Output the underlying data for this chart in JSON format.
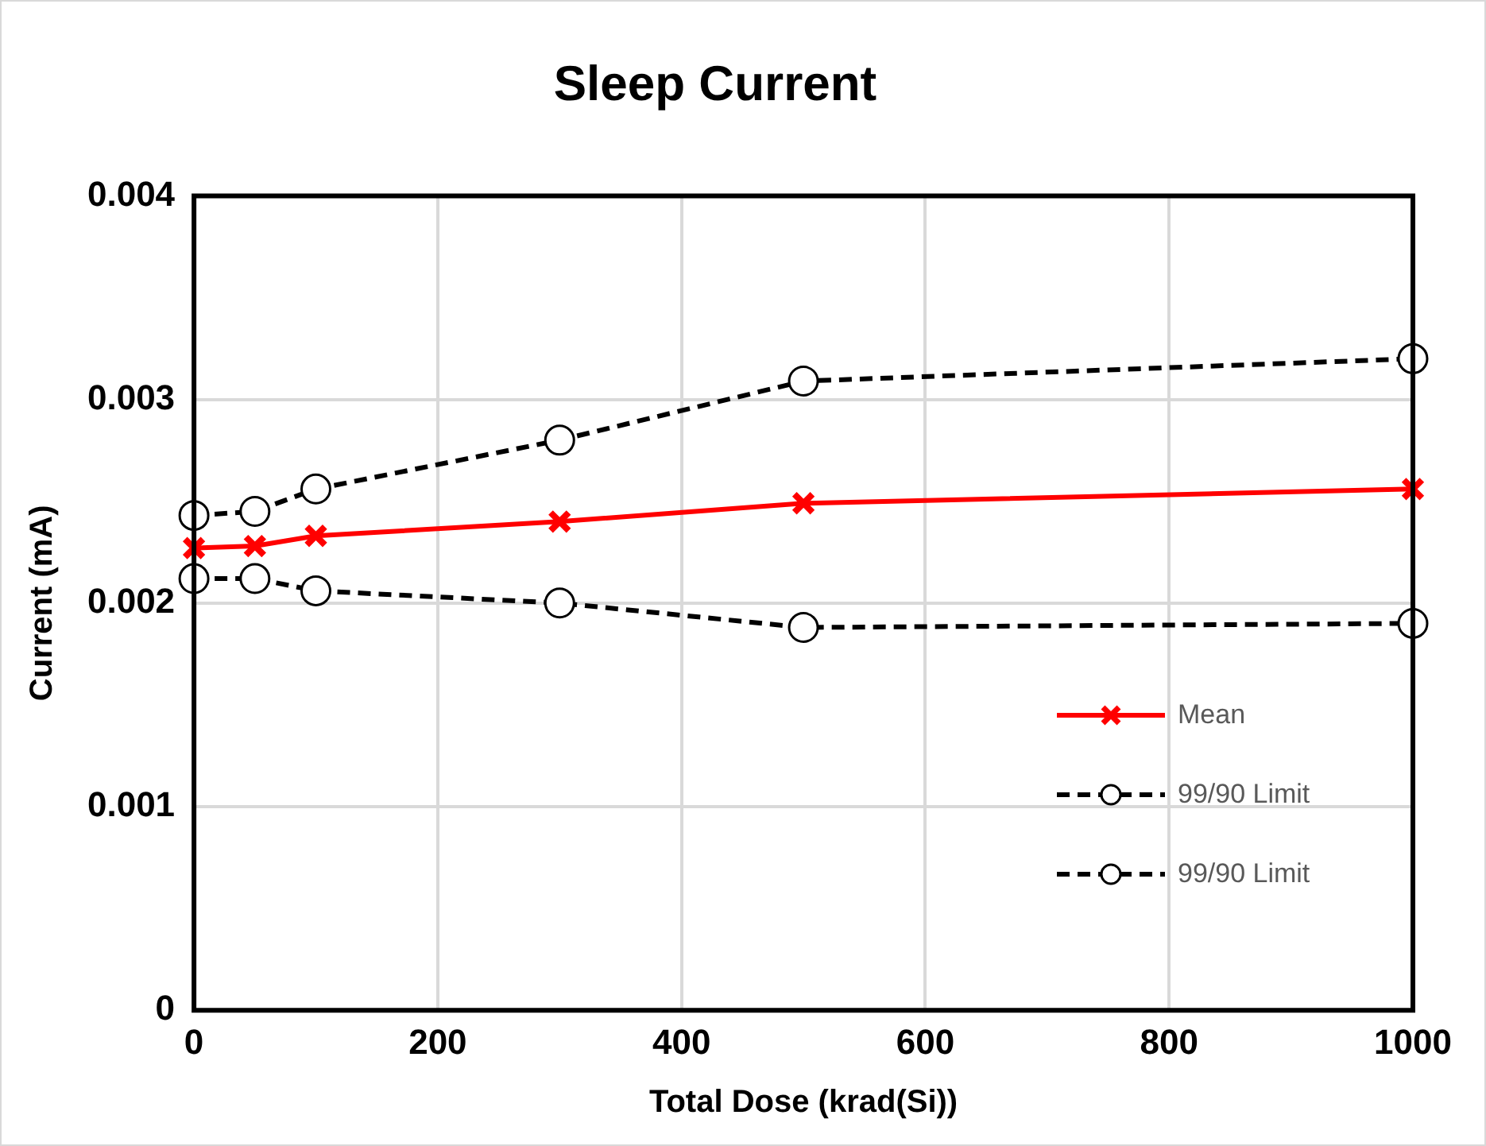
{
  "chart_data": {
    "type": "line",
    "title": "Sleep Current",
    "xlabel": "Total Dose (krad(Si))",
    "ylabel": "Current (mA)",
    "x": [
      0,
      50,
      100,
      300,
      500,
      1000
    ],
    "xlim": [
      0,
      1000
    ],
    "xticks": [
      0,
      200,
      400,
      600,
      800,
      1000
    ],
    "ylim": [
      0,
      0.004
    ],
    "yticks": [
      0,
      0.001,
      0.002,
      0.003,
      0.004
    ],
    "grid": true,
    "legend": "bottom right",
    "series": [
      {
        "name": "Mean",
        "color": "#ff0000",
        "marker": "cross",
        "line_style": "solid",
        "values": [
          0.00227,
          0.00228,
          0.00233,
          0.0024,
          0.00249,
          0.00256
        ]
      },
      {
        "name": "99/90 Limit",
        "color": "#000000",
        "marker": "circle",
        "line_style": "dashed",
        "values": [
          0.00243,
          0.00245,
          0.00256,
          0.0028,
          0.00309,
          0.0032
        ]
      },
      {
        "name": "99/90 Limit",
        "color": "#000000",
        "marker": "circle",
        "line_style": "dashed",
        "values": [
          0.00212,
          0.00212,
          0.00206,
          0.002,
          0.00188,
          0.0019
        ]
      }
    ]
  }
}
